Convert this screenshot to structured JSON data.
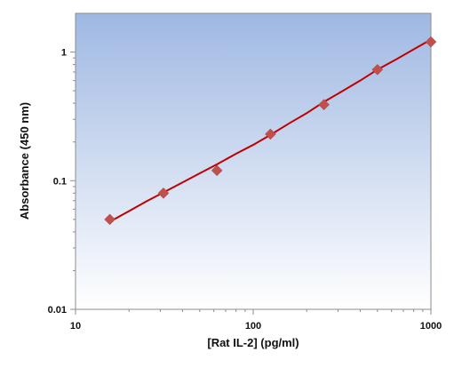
{
  "chart_data": {
    "type": "scatter",
    "title": "",
    "xlabel": "[Rat IL-2] (pg/ml)",
    "ylabel": "Absorbance (450 nm)",
    "x_scale": "log",
    "y_scale": "log",
    "xlim": [
      10,
      1000
    ],
    "ylim": [
      0.01,
      2
    ],
    "x_ticks": [
      {
        "value": 10,
        "label": "10"
      },
      {
        "value": 100,
        "label": "100"
      },
      {
        "value": 1000,
        "label": "1000"
      }
    ],
    "y_ticks": [
      {
        "value": 0.01,
        "label": "0.01"
      },
      {
        "value": 0.1,
        "label": "0.1"
      },
      {
        "value": 1,
        "label": "1"
      }
    ],
    "grid": false,
    "legend": "none",
    "series": [
      {
        "marker": "diamond",
        "color": "#c0504d",
        "x": [
          15.6,
          31.25,
          62.5,
          125,
          250,
          500,
          1000
        ],
        "y": [
          0.05,
          0.08,
          0.12,
          0.23,
          0.39,
          0.73,
          1.2
        ]
      }
    ],
    "fit_curve": {
      "color": "#c00000",
      "x": [
        15.6,
        20,
        25,
        31.25,
        40,
        50,
        62.5,
        80,
        100,
        125,
        160,
        200,
        250,
        320,
        400,
        500,
        640,
        800,
        1000
      ],
      "y": [
        0.048,
        0.058,
        0.069,
        0.081,
        0.097,
        0.114,
        0.134,
        0.162,
        0.19,
        0.227,
        0.28,
        0.335,
        0.41,
        0.5,
        0.6,
        0.73,
        0.88,
        1.05,
        1.25
      ]
    },
    "colors": {
      "plot_bg_top": "#9fb8e2",
      "plot_bg_bottom": "#ffffff",
      "marker": "#c0504d",
      "line": "#c00000"
    }
  }
}
